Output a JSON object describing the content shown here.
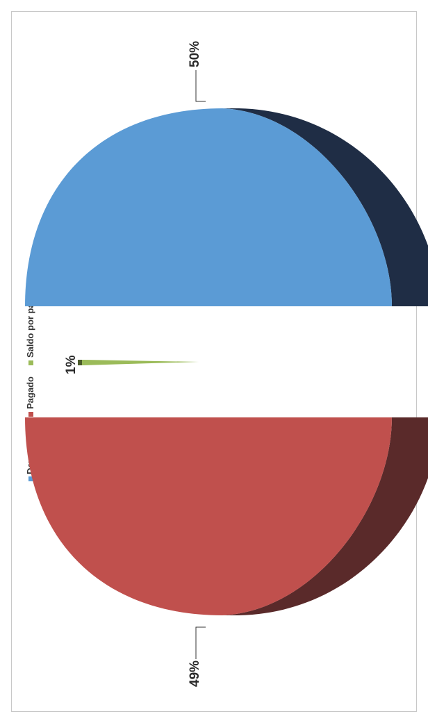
{
  "chart_data": {
    "type": "pie",
    "variant": "3d-exploded",
    "orientation": "rotated-90-ccw",
    "legend_position": "top",
    "categories": [
      "Devengado",
      "Pagado",
      "Saldo por pagar"
    ],
    "values": [
      50,
      49,
      1
    ],
    "labels": [
      "50%",
      "49%",
      "1%"
    ],
    "colors": [
      "#5b9bd5",
      "#c0504d",
      "#9bbb59"
    ],
    "side_colors": [
      "#1f2d45",
      "#5a2a2a",
      "#4a5a2a"
    ]
  }
}
